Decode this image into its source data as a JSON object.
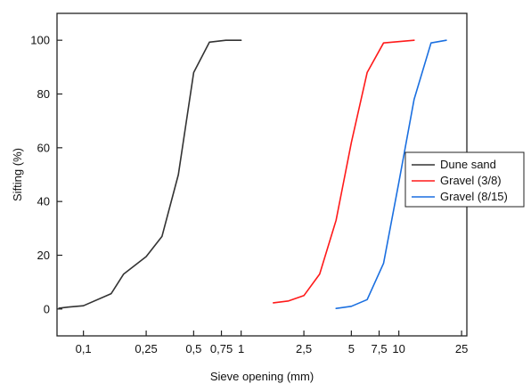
{
  "chart_data": {
    "type": "line",
    "title": "",
    "xlabel": "Sieve opening (mm)",
    "ylabel": "Sifting (%)",
    "x_scale": "log",
    "xlim": [
      0.068,
      27
    ],
    "ylim": [
      -10,
      110
    ],
    "grid": false,
    "legend_position": "right",
    "x_ticks": [
      {
        "value": 0.1,
        "label": "0,1"
      },
      {
        "value": 0.25,
        "label": "0,25"
      },
      {
        "value": 0.5,
        "label": "0,5"
      },
      {
        "value": 0.75,
        "label": "0,75"
      },
      {
        "value": 1,
        "label": "1"
      },
      {
        "value": 2.5,
        "label": "2,5"
      },
      {
        "value": 5,
        "label": "5"
      },
      {
        "value": 7.5,
        "label": "7,5"
      },
      {
        "value": 10,
        "label": "10"
      },
      {
        "value": 25,
        "label": "25"
      }
    ],
    "y_ticks": [
      0,
      20,
      40,
      60,
      80,
      100
    ],
    "series": [
      {
        "name": "Dune sand",
        "color": "#333333",
        "points": [
          [
            0.07,
            0.3
          ],
          [
            0.08,
            0.7
          ],
          [
            0.1,
            1.2
          ],
          [
            0.15,
            5.7
          ],
          [
            0.18,
            13
          ],
          [
            0.25,
            19.5
          ],
          [
            0.315,
            27
          ],
          [
            0.4,
            50
          ],
          [
            0.5,
            88
          ],
          [
            0.63,
            99.3
          ],
          [
            0.8,
            100
          ],
          [
            1.0,
            100
          ]
        ]
      },
      {
        "name": "Gravel (3/8)",
        "color": "#ff1a1a",
        "points": [
          [
            1.6,
            2.3
          ],
          [
            2,
            3
          ],
          [
            2.5,
            5
          ],
          [
            3.15,
            13
          ],
          [
            4,
            33
          ],
          [
            5,
            62
          ],
          [
            6.3,
            88
          ],
          [
            8,
            99
          ],
          [
            10,
            99.5
          ],
          [
            12.5,
            100
          ]
        ]
      },
      {
        "name": "Gravel (8/15)",
        "color": "#1a6fe0",
        "points": [
          [
            4,
            0.2
          ],
          [
            5,
            1
          ],
          [
            6.3,
            3.5
          ],
          [
            8,
            17
          ],
          [
            10,
            47
          ],
          [
            12.5,
            78
          ],
          [
            16,
            99
          ],
          [
            20,
            100
          ]
        ]
      }
    ]
  }
}
